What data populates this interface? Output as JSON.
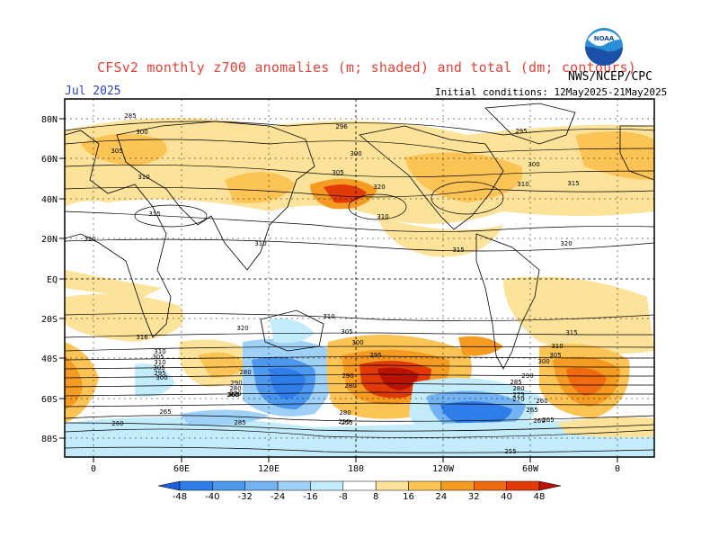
{
  "header": {
    "title": "CFSv2 monthly z700 anomalies (m; shaded) and total (dm; contours)",
    "agency": "NWS/NCEP/CPC",
    "month": "Jul 2025",
    "initial_conditions": "Initial conditions: 12May2025-21May2025"
  },
  "logo": {
    "text": "NOAA",
    "icon": "noaa-logo-icon"
  },
  "map": {
    "lat_labels": [
      "80N",
      "60N",
      "40N",
      "20N",
      "EQ",
      "20S",
      "40S",
      "60S",
      "80S"
    ],
    "lon_labels": [
      "0",
      "60E",
      "120E",
      "180",
      "120W",
      "60W",
      "0"
    ],
    "contour_labels": [
      "285",
      "300",
      "305",
      "310",
      "315",
      "320",
      "296",
      "295",
      "300",
      "300",
      "305",
      "310",
      "315",
      "320",
      "315",
      "320",
      "310",
      "310",
      "316",
      "320",
      "310",
      "305",
      "310",
      "305",
      "295",
      "300",
      "280",
      "290",
      "280",
      "270",
      "260",
      "310",
      "305",
      "300",
      "295",
      "290",
      "280",
      "255",
      "260",
      "265",
      "270",
      "275",
      "280",
      "285",
      "290",
      "300",
      "305",
      "310",
      "315",
      "265",
      "260",
      "285",
      "280",
      "260",
      "255",
      "265",
      "260",
      "255"
    ]
  },
  "colorbar": {
    "labels": [
      "-48",
      "-40",
      "-32",
      "-24",
      "-16",
      "-8",
      "8",
      "16",
      "24",
      "32",
      "40",
      "48"
    ],
    "colors": [
      "#1a5ed8",
      "#2f7de8",
      "#4d97ee",
      "#74b3f3",
      "#9fd0f6",
      "#c3ecfa",
      "#ffffff",
      "#fde29a",
      "#fbc455",
      "#f59b22",
      "#f26a0e",
      "#e23a06",
      "#b81203"
    ]
  }
}
